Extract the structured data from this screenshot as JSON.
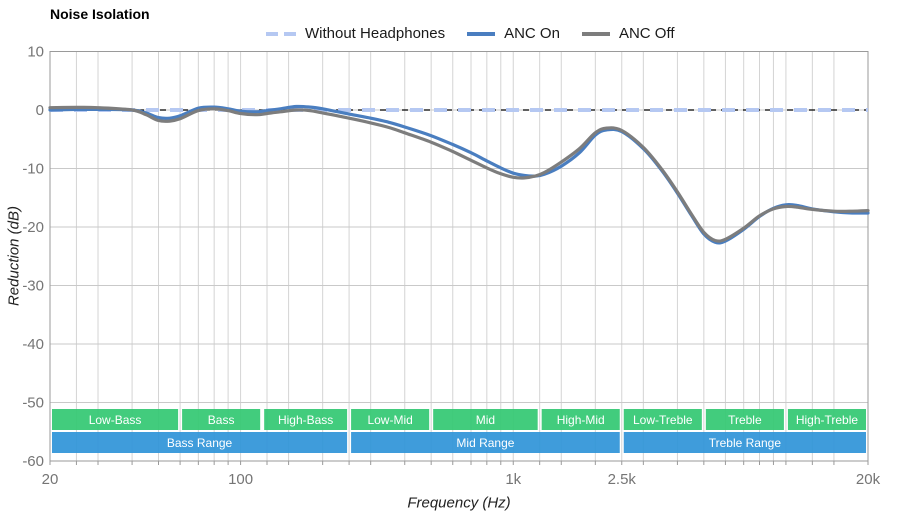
{
  "title": "Noise Isolation",
  "legend": [
    {
      "label": "Without Headphones",
      "color": "#b5c8f2",
      "style": "dashed"
    },
    {
      "label": "ANC On",
      "color": "#4a7ec0",
      "style": "solid"
    },
    {
      "label": "ANC Off",
      "color": "#7d7d7d",
      "style": "solid"
    }
  ],
  "axes": {
    "y": {
      "label": "Reduction (dB)",
      "unit": "dB",
      "range": [
        -60,
        10
      ],
      "ticks": [
        10,
        0,
        -10,
        -20,
        -30,
        -40,
        -50,
        -60
      ]
    },
    "x": {
      "label": "Frequency (Hz)",
      "unit": "Hz",
      "scale": "log",
      "range": [
        20,
        20000
      ],
      "major_ticks": [
        {
          "value": 20,
          "text": "20"
        },
        {
          "value": 100,
          "text": "100"
        },
        {
          "value": 1000,
          "text": "1k"
        },
        {
          "value": 2500,
          "text": "2.5k"
        },
        {
          "value": 20000,
          "text": "20k"
        }
      ],
      "gridlines": [
        25,
        30,
        40,
        50,
        60,
        70,
        80,
        90,
        100,
        125,
        150,
        200,
        250,
        300,
        400,
        500,
        600,
        700,
        800,
        900,
        1000,
        1250,
        1500,
        2000,
        2500,
        3000,
        4000,
        5000,
        6000,
        7000,
        8000,
        9000,
        10000,
        12500,
        15000,
        20000
      ]
    }
  },
  "chart_data": {
    "type": "line",
    "title": "Noise Isolation",
    "xlabel": "Frequency (Hz)",
    "ylabel": "Reduction (dB)",
    "xlim": [
      20,
      20000
    ],
    "ylim": [
      -60,
      10
    ],
    "x_scale": "log",
    "grid": true,
    "legend_position": "top",
    "series": [
      {
        "name": "Without Headphones",
        "color": "#b5c8f2",
        "dashed": true,
        "x": [
          20,
          20000
        ],
        "y": [
          0,
          0
        ]
      },
      {
        "name": "ANC On",
        "color": "#4a7ec0",
        "dashed": false,
        "x": [
          20,
          25,
          30,
          40,
          45,
          50,
          55,
          60,
          70,
          80,
          90,
          100,
          115,
          125,
          140,
          160,
          180,
          200,
          250,
          300,
          350,
          400,
          500,
          600,
          700,
          800,
          900,
          1000,
          1100,
          1200,
          1300,
          1500,
          1750,
          2000,
          2200,
          2500,
          3000,
          3500,
          4000,
          4500,
          5000,
          5500,
          6000,
          7000,
          8000,
          9000,
          10000,
          11000,
          12500,
          15000,
          17500,
          20000
        ],
        "y": [
          0,
          0.1,
          0.1,
          0,
          -0.5,
          -1.3,
          -1.4,
          -1,
          0.3,
          0.5,
          0.2,
          -0.2,
          -0.3,
          -0.1,
          0.2,
          0.6,
          0.5,
          0.2,
          -0.7,
          -1.4,
          -2.1,
          -2.9,
          -4.4,
          -5.9,
          -7.3,
          -8.7,
          -9.9,
          -10.8,
          -11.2,
          -11.3,
          -11,
          -9.6,
          -7.3,
          -4.3,
          -3.4,
          -3.7,
          -6.6,
          -10.3,
          -14.2,
          -18,
          -21.2,
          -22.6,
          -22.4,
          -20.4,
          -18.2,
          -16.8,
          -16.2,
          -16.3,
          -16.9,
          -17.4,
          -17.6,
          -17.6
        ]
      },
      {
        "name": "ANC Off",
        "color": "#7d7d7d",
        "dashed": false,
        "x": [
          20,
          25,
          30,
          40,
          45,
          50,
          55,
          60,
          70,
          80,
          90,
          100,
          115,
          125,
          140,
          160,
          180,
          200,
          250,
          300,
          350,
          400,
          500,
          600,
          700,
          800,
          900,
          1000,
          1100,
          1200,
          1300,
          1500,
          1750,
          2000,
          2200,
          2500,
          3000,
          3500,
          4000,
          4500,
          5000,
          5500,
          6000,
          7000,
          8000,
          9000,
          10000,
          11000,
          12500,
          15000,
          17500,
          20000
        ],
        "y": [
          0.4,
          0.45,
          0.4,
          0,
          -0.8,
          -1.8,
          -1.9,
          -1.5,
          -0.1,
          0.2,
          -0.1,
          -0.6,
          -0.8,
          -0.6,
          -0.3,
          0,
          -0.1,
          -0.5,
          -1.4,
          -2.2,
          -3,
          -3.9,
          -5.5,
          -7.1,
          -8.6,
          -9.9,
          -10.9,
          -11.5,
          -11.6,
          -11.3,
          -10.7,
          -8.9,
          -6.6,
          -3.9,
          -3.1,
          -3.5,
          -6.4,
          -10.1,
          -14,
          -17.8,
          -20.9,
          -22.3,
          -22.1,
          -20.2,
          -18.1,
          -16.9,
          -16.5,
          -16.6,
          -17,
          -17.3,
          -17.3,
          -17.2
        ]
      }
    ],
    "zero_reference_line": {
      "value": 0,
      "color": "#000000",
      "dashed": true
    },
    "bands": {
      "sub_color": "#34c873",
      "range_color": "#3094d8",
      "sub": [
        {
          "label": "Low-Bass",
          "from": 20,
          "to": 60
        },
        {
          "label": "Bass",
          "from": 60,
          "to": 120
        },
        {
          "label": "High-Bass",
          "from": 120,
          "to": 250
        },
        {
          "label": "Low-Mid",
          "from": 250,
          "to": 500
        },
        {
          "label": "Mid",
          "from": 500,
          "to": 1250
        },
        {
          "label": "High-Mid",
          "from": 1250,
          "to": 2500
        },
        {
          "label": "Low-Treble",
          "from": 2500,
          "to": 5000
        },
        {
          "label": "Treble",
          "from": 5000,
          "to": 10000
        },
        {
          "label": "High-Treble",
          "from": 10000,
          "to": 20000
        }
      ],
      "ranges": [
        {
          "label": "Bass Range",
          "from": 20,
          "to": 250
        },
        {
          "label": "Mid Range",
          "from": 250,
          "to": 2500
        },
        {
          "label": "Treble Range",
          "from": 2500,
          "to": 20000
        }
      ]
    }
  },
  "colors": {
    "background": "#ffffff",
    "grid_vertical": "#d4d4d4",
    "grid_horizontal": "#c9c9c9",
    "plot_border": "#9a9a9a",
    "tick_text": "#757575",
    "band_text": "#ffffff"
  }
}
